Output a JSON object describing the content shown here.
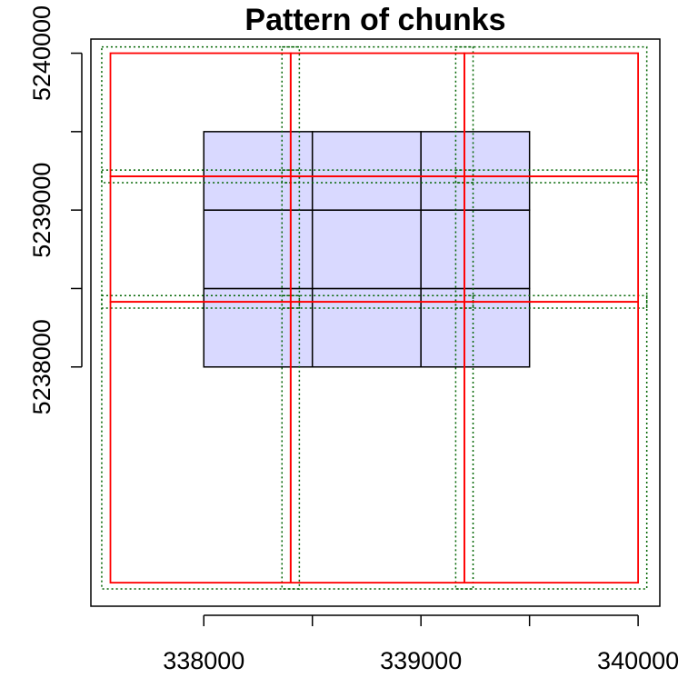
{
  "chart_data": {
    "type": "other",
    "title": "Pattern of chunks",
    "xlabel": "",
    "ylabel": "",
    "xlim": [
      337480,
      340100
    ],
    "ylim": [
      5236475,
      5240090
    ],
    "x_ticks": [
      338000,
      338500,
      339000,
      339500,
      340000
    ],
    "x_tick_labels": [
      "338000",
      "",
      "339000",
      "",
      "340000"
    ],
    "y_ticks": [
      5238000,
      5238500,
      5239000,
      5239500,
      5240000
    ],
    "y_tick_labels": [
      "5238000",
      "",
      "5239000",
      "",
      "5240000"
    ],
    "grid": false,
    "legend": "none",
    "colors": {
      "tile_fill": "#d9d9ff",
      "tile_border": "#000000",
      "chunk_border": "#ff0000",
      "buffer_border": "#006400",
      "frame": "#000000"
    },
    "tiles": [
      {
        "xmin": 338000,
        "xmax": 338500,
        "ymin": 5238000,
        "ymax": 5238500
      },
      {
        "xmin": 338500,
        "xmax": 339000,
        "ymin": 5238000,
        "ymax": 5238500
      },
      {
        "xmin": 339000,
        "xmax": 339500,
        "ymin": 5238000,
        "ymax": 5238500
      },
      {
        "xmin": 338000,
        "xmax": 338500,
        "ymin": 5238500,
        "ymax": 5239000
      },
      {
        "xmin": 338500,
        "xmax": 339000,
        "ymin": 5238500,
        "ymax": 5239000
      },
      {
        "xmin": 339000,
        "xmax": 339500,
        "ymin": 5238500,
        "ymax": 5239000
      },
      {
        "xmin": 338000,
        "xmax": 338500,
        "ymin": 5239000,
        "ymax": 5239500
      },
      {
        "xmin": 338500,
        "xmax": 339000,
        "ymin": 5239000,
        "ymax": 5239500
      },
      {
        "xmin": 339000,
        "xmax": 339500,
        "ymin": 5239000,
        "ymax": 5239500
      }
    ],
    "chunks": {
      "x_breaks": [
        337570,
        338400,
        339200,
        340000
      ],
      "y_breaks": [
        5236625,
        5238415,
        5239215,
        5240000
      ]
    },
    "chunk_buffer": 40
  }
}
